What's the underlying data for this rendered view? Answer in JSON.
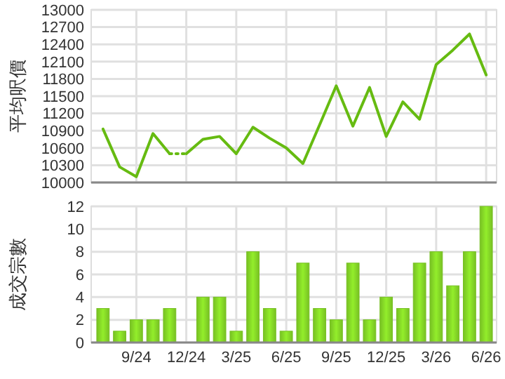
{
  "chart_data": [
    {
      "type": "line",
      "ylabel": "平均呎價",
      "categories": [
        null,
        null,
        null,
        null,
        null,
        null,
        null,
        null,
        null,
        null,
        null,
        null,
        null,
        null,
        null,
        null,
        null,
        null,
        null,
        null,
        null,
        null,
        null,
        null
      ],
      "series": [
        {
          "color": "#66bb11",
          "values": [
            10930,
            10270,
            10100,
            10850,
            10500,
            null,
            null,
            null,
            null,
            null,
            null,
            null,
            null,
            null,
            null,
            null,
            null,
            null,
            null,
            null,
            null,
            null,
            null,
            null
          ]
        },
        {
          "color": "#66bb11",
          "line_style": "dotted",
          "values": [
            null,
            null,
            null,
            null,
            10500,
            10500,
            null,
            null,
            null,
            null,
            null,
            null,
            null,
            null,
            null,
            null,
            null,
            null,
            null,
            null,
            null,
            null,
            null,
            null
          ]
        },
        {
          "color": "#66bb11",
          "values": [
            null,
            null,
            null,
            null,
            null,
            10500,
            10750,
            10800,
            10500,
            10960,
            10770,
            10600,
            10330,
            11000,
            11680,
            10980,
            11650,
            10800,
            11400,
            11100,
            12050,
            12300,
            12580,
            11870
          ]
        }
      ],
      "ylim": [
        10000,
        13000
      ],
      "yticks": [
        10000,
        10300,
        10600,
        10900,
        11200,
        11500,
        11800,
        12100,
        12400,
        12700,
        13000
      ],
      "grid": true,
      "tick_labels": "y",
      "line_style": "solid",
      "marker": "none"
    },
    {
      "type": "bar",
      "ylabel": "成交宗數",
      "categories": [
        null,
        null,
        "9/24",
        null,
        null,
        "12/24",
        null,
        null,
        "3/25",
        null,
        null,
        "6/25",
        null,
        null,
        "9/25",
        null,
        null,
        "12/25",
        null,
        null,
        "3/26",
        null,
        null,
        "6/26"
      ],
      "values": [
        3,
        1,
        2,
        2,
        3,
        0,
        4,
        4,
        1,
        8,
        3,
        1,
        7,
        3,
        2,
        7,
        2,
        4,
        3,
        7,
        8,
        5,
        8,
        12
      ],
      "color": "#77c023",
      "ylim": [
        0,
        12
      ],
      "yticks": [
        0,
        2,
        4,
        6,
        8,
        10,
        12
      ],
      "grid": true
    }
  ]
}
